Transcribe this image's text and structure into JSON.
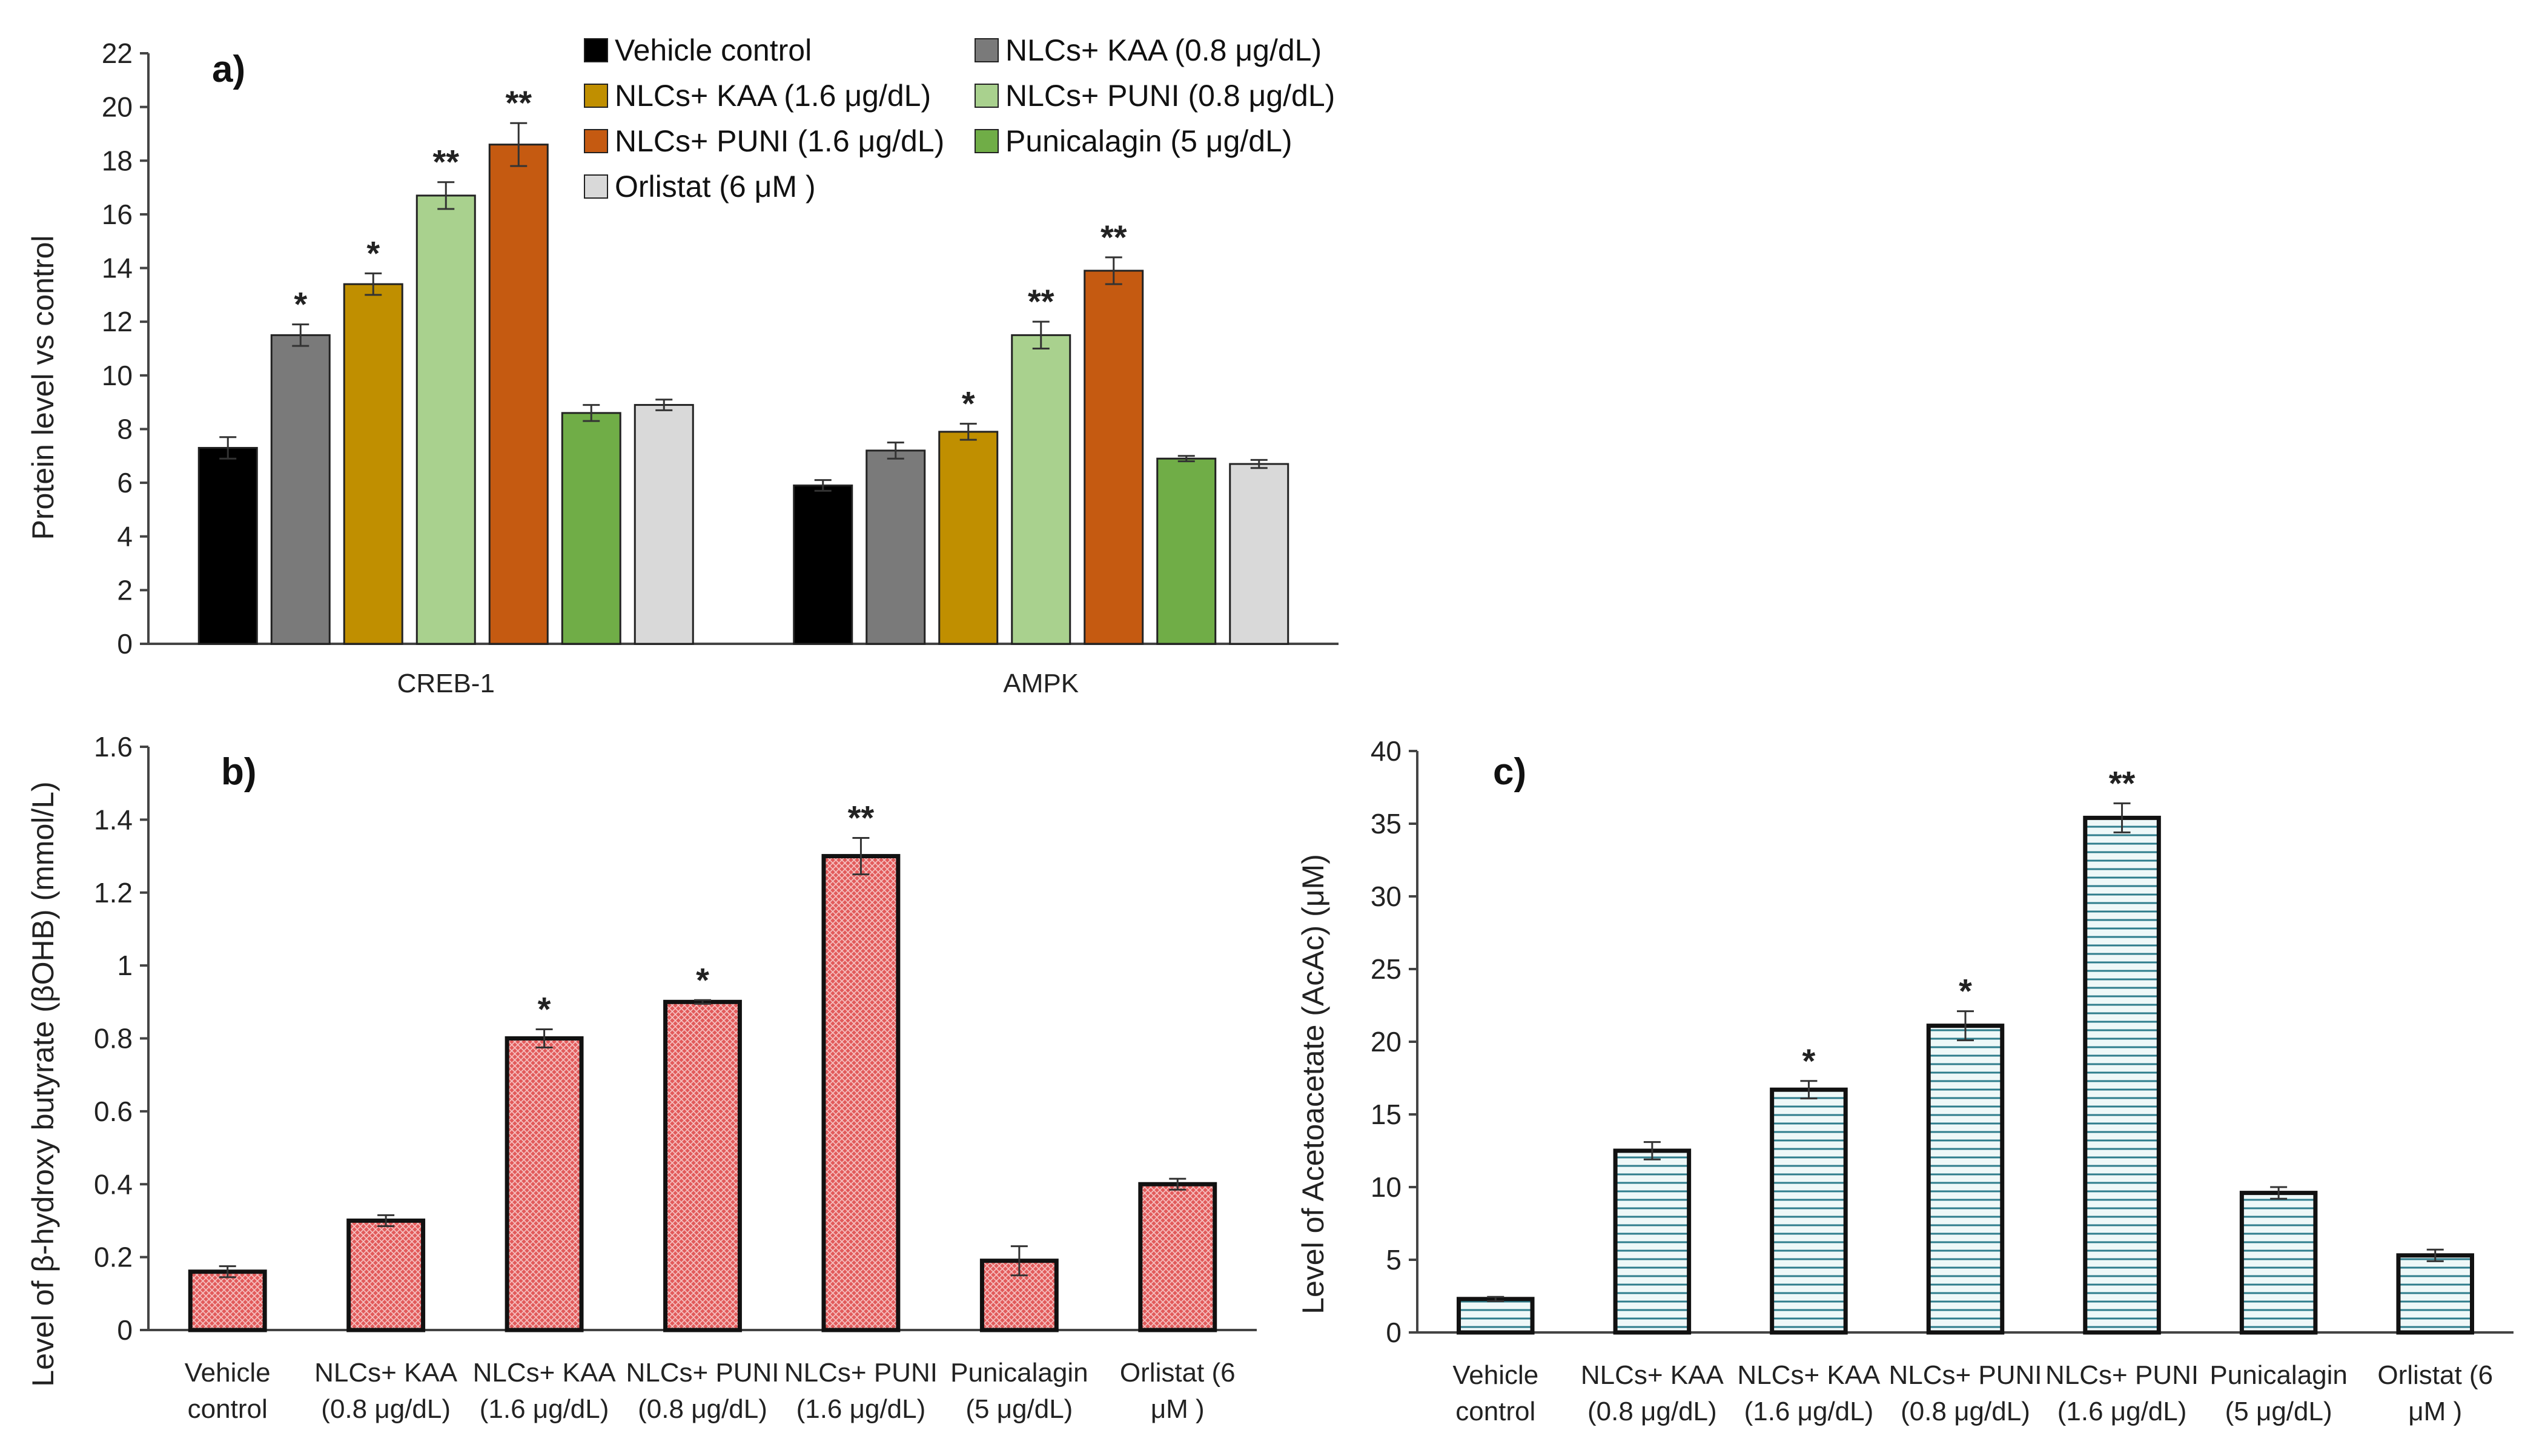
{
  "colors": {
    "vehicle": "#000000",
    "kaa08": "#7a7a7a",
    "kaa16": "#c08f00",
    "puni08": "#a9d18e",
    "puni16": "#c55a11",
    "punicalagin": "#70ad47",
    "orlistat": "#d9d9d9",
    "panel_b_fill": "#e66b6b",
    "panel_c_fill": "#dcefef",
    "panel_c_lines": "#2e7d8c"
  },
  "chart_data": [
    {
      "id": "a",
      "panel_label": "a)",
      "type": "bar",
      "ylabel": "Protein level vs control",
      "ylim": [
        0,
        22
      ],
      "yticks": [
        "0",
        "2",
        "4",
        "6",
        "8",
        "10",
        "12",
        "14",
        "16",
        "18",
        "20",
        "22"
      ],
      "categories": [
        "CREB-1",
        "AMPK"
      ],
      "legend_position": "top",
      "series": [
        {
          "name": "Vehicle control",
          "color_key": "vehicle",
          "values": [
            7.3,
            5.9
          ],
          "errors": [
            0.4,
            0.2
          ],
          "sig": [
            "",
            ""
          ]
        },
        {
          "name": "NLCs+ KAA (0.8 μg/dL)",
          "color_key": "kaa08",
          "values": [
            11.5,
            7.2
          ],
          "errors": [
            0.4,
            0.3
          ],
          "sig": [
            "*",
            ""
          ]
        },
        {
          "name": "NLCs+ KAA (1.6 μg/dL)",
          "color_key": "kaa16",
          "values": [
            13.4,
            7.9
          ],
          "errors": [
            0.4,
            0.3
          ],
          "sig": [
            "*",
            "*"
          ]
        },
        {
          "name": "NLCs+ PUNI (0.8 μg/dL)",
          "color_key": "puni08",
          "values": [
            16.7,
            11.5
          ],
          "errors": [
            0.5,
            0.5
          ],
          "sig": [
            "**",
            "**"
          ]
        },
        {
          "name": "NLCs+ PUNI (1.6 μg/dL)",
          "color_key": "puni16",
          "values": [
            18.6,
            13.9
          ],
          "errors": [
            0.8,
            0.5
          ],
          "sig": [
            "**",
            "**"
          ]
        },
        {
          "name": "Punicalagin (5 μg/dL)",
          "color_key": "punicalagin",
          "values": [
            8.6,
            6.9
          ],
          "errors": [
            0.3,
            0.1
          ],
          "sig": [
            "",
            ""
          ]
        },
        {
          "name": "Orlistat (6 μM )",
          "color_key": "orlistat",
          "values": [
            8.9,
            6.7
          ],
          "errors": [
            0.2,
            0.15
          ],
          "sig": [
            "",
            ""
          ]
        }
      ]
    },
    {
      "id": "b",
      "panel_label": "b)",
      "type": "bar",
      "ylabel": "Level of β-hydroxy butyrate (βOHB) (mmol/L)",
      "ylim": [
        0,
        1.6
      ],
      "yticks": [
        "0",
        "0.2",
        "0.4",
        "0.6",
        "0.8",
        "1",
        "1.2",
        "1.4",
        "1.6"
      ],
      "categories": [
        [
          "Vehicle",
          "control"
        ],
        [
          "NLCs+ KAA",
          "(0.8 μg/dL)"
        ],
        [
          "NLCs+ KAA",
          "(1.6 μg/dL)"
        ],
        [
          "NLCs+ PUNI",
          "(0.8 μg/dL)"
        ],
        [
          "NLCs+ PUNI",
          "(1.6 μg/dL)"
        ],
        [
          "Punicalagin",
          "(5 μg/dL)"
        ],
        [
          "Orlistat (6",
          "μM )"
        ]
      ],
      "values": [
        0.16,
        0.3,
        0.8,
        0.9,
        1.3,
        0.19,
        0.4
      ],
      "errors": [
        0.015,
        0.015,
        0.025,
        0.005,
        0.05,
        0.04,
        0.015
      ],
      "sig": [
        "",
        "",
        "*",
        "*",
        "**",
        "",
        ""
      ]
    },
    {
      "id": "c",
      "panel_label": "c)",
      "type": "bar",
      "ylabel": "Level of Acetoacetate (AcAc) (μM)",
      "ylim": [
        0,
        40
      ],
      "yticks": [
        "0",
        "5",
        "10",
        "15",
        "20",
        "25",
        "30",
        "35",
        "40"
      ],
      "categories": [
        [
          "Vehicle",
          "control"
        ],
        [
          "NLCs+ KAA",
          "(0.8 μg/dL)"
        ],
        [
          "NLCs+ KAA",
          "(1.6 μg/dL)"
        ],
        [
          "NLCs+ PUNI",
          "(0.8 μg/dL)"
        ],
        [
          "NLCs+ PUNI",
          "(1.6 μg/dL)"
        ],
        [
          "Punicalagin",
          "(5 μg/dL)"
        ],
        [
          "Orlistat (6",
          "μM )"
        ]
      ],
      "values": [
        2.3,
        12.5,
        16.7,
        21.1,
        35.4,
        9.6,
        5.3
      ],
      "errors": [
        0.15,
        0.6,
        0.6,
        1.0,
        1.0,
        0.4,
        0.4
      ],
      "sig": [
        "",
        "",
        "*",
        "*",
        "**",
        "",
        ""
      ]
    }
  ]
}
